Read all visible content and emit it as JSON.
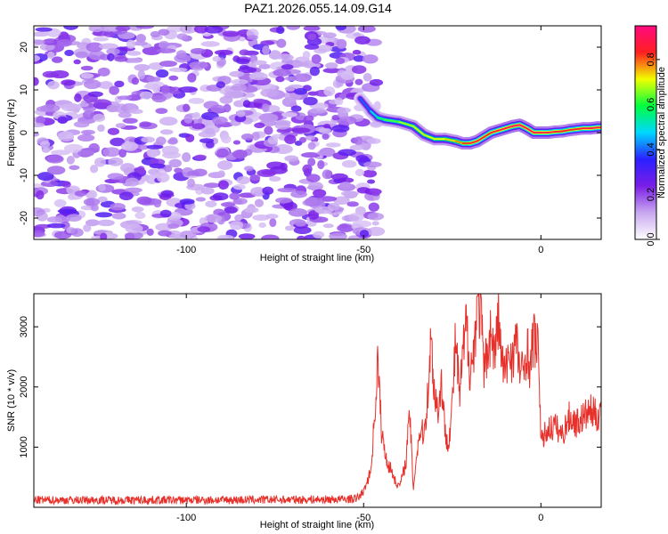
{
  "chart_data": [
    {
      "type": "heatmap",
      "title": "PAZ1.2026.055.14.09.G14",
      "xlabel": "Height of straight line (km)",
      "ylabel": "Frequency (Hz)",
      "xlim": [
        -143,
        17
      ],
      "ylim": [
        -25,
        25
      ],
      "xticks": [
        -100,
        -50,
        0
      ],
      "xtick_labels": [
        "-100",
        "-50",
        "0"
      ],
      "yticks": [
        -20,
        -10,
        0,
        10,
        20
      ],
      "ytick_labels": [
        "-20",
        "-10",
        "0",
        "10",
        "20"
      ],
      "colorbar": {
        "label": "Normalized spectral amplitude",
        "range": [
          0,
          0.95
        ],
        "ticks": [
          0.0,
          0.2,
          0.4,
          0.6,
          0.8
        ],
        "tick_labels": [
          "0.0",
          "0.2",
          "0.4",
          "0.6",
          "0.8"
        ],
        "colors": [
          "#ffffff",
          "#c8a8f0",
          "#7a1ee6",
          "#2a20ff",
          "#00d8ff",
          "#00ff40",
          "#f0ff00",
          "#ff2020",
          "#ff0a80"
        ]
      },
      "noise_region_x": [
        -143,
        -50
      ],
      "signal_ridge": {
        "x": [
          -51,
          -48,
          -46,
          -44,
          -40,
          -36,
          -33,
          -30,
          -27,
          -24,
          -22,
          -20,
          -18,
          -16,
          -14,
          -12,
          -10,
          -8,
          -6,
          -4,
          -2,
          0,
          2,
          4,
          6,
          8,
          10,
          12,
          14,
          16,
          17
        ],
        "y": [
          8,
          5,
          3.5,
          3,
          2.5,
          1.5,
          -0.5,
          -1.5,
          -1.5,
          -2,
          -2.5,
          -2.5,
          -2,
          -1,
          0,
          0.5,
          1,
          1.5,
          1.8,
          1,
          0,
          0,
          0,
          0.2,
          0.3,
          0.6,
          0.8,
          1,
          1,
          1.2,
          1.2
        ],
        "peak_amplitude": [
          0.35,
          0.45,
          0.55,
          0.6,
          0.65,
          0.7,
          0.7,
          0.7,
          0.72,
          0.75,
          0.8,
          0.85,
          0.88,
          0.85,
          0.85,
          0.88,
          0.9,
          0.92,
          0.92,
          0.9,
          0.9,
          0.9,
          0.88,
          0.88,
          0.85,
          0.85,
          0.85,
          0.88,
          0.9,
          0.9,
          0.9
        ]
      }
    },
    {
      "type": "line",
      "xlabel": "Height of straight line (km)",
      "ylabel": "SNR (10 * v/v)",
      "xlim": [
        -143,
        17
      ],
      "ylim": [
        0,
        3550
      ],
      "xticks": [
        -100,
        -50,
        0
      ],
      "xtick_labels": [
        "-100",
        "-50",
        "0"
      ],
      "yticks": [
        1000,
        2000,
        3000
      ],
      "ytick_labels": [
        "1000",
        "2000",
        "3000"
      ],
      "series": [
        {
          "name": "SNR",
          "color": "#e8302a",
          "x": [
            -143,
            -120,
            -100,
            -80,
            -60,
            -52,
            -50,
            -48,
            -47,
            -46,
            -45,
            -44,
            -43,
            -42,
            -41,
            -40,
            -39,
            -38,
            -37,
            -36,
            -35,
            -34,
            -33,
            -32,
            -31,
            -30,
            -29,
            -28,
            -27,
            -26,
            -25,
            -24,
            -23,
            -22,
            -21,
            -20,
            -19,
            -18,
            -17,
            -16,
            -15,
            -14,
            -13,
            -12,
            -11,
            -10,
            -9,
            -8,
            -7,
            -6,
            -5,
            -4,
            -3,
            -2,
            -1,
            -0.5,
            0,
            1,
            2,
            4,
            6,
            8,
            10,
            12,
            14,
            16,
            17
          ],
          "y": [
            120,
            120,
            120,
            125,
            130,
            140,
            260,
            600,
            1400,
            2450,
            1300,
            900,
            700,
            600,
            420,
            350,
            520,
            800,
            1600,
            300,
            900,
            1300,
            1200,
            1800,
            2800,
            1900,
            1600,
            2100,
            1200,
            1100,
            1700,
            2850,
            1800,
            2500,
            3050,
            2300,
            2500,
            3450,
            3250,
            2200,
            2700,
            2900,
            2500,
            3200,
            2400,
            2200,
            2600,
            2500,
            2800,
            2300,
            2200,
            2700,
            2300,
            2900,
            2600,
            2500,
            1050,
            1200,
            1300,
            1350,
            1200,
            1500,
            1400,
            1500,
            1600,
            1500,
            1700
          ]
        }
      ]
    }
  ]
}
